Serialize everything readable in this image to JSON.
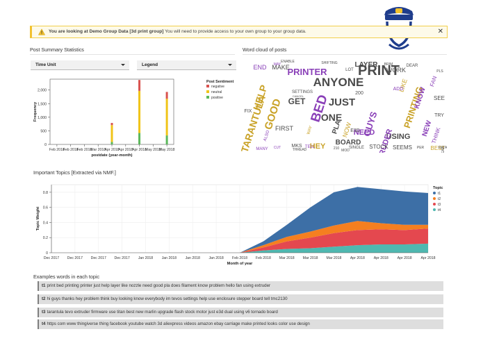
{
  "banner": {
    "bold_text": "You are looking at Demo Group Data [3d print group]",
    "text": " You will need to provide access to your own group to your group data.",
    "close_label": "✕"
  },
  "post_summary": {
    "title": "Post Summary Statistics",
    "time_unit_label": "Time Unit",
    "legend_label": "Legend"
  },
  "word_cloud": {
    "title": "Word cloud of posts",
    "words": [
      {
        "t": "ANYONE",
        "s": 17,
        "c": "#4b4b4b"
      },
      {
        "t": "PRINT",
        "s": 20,
        "c": "#4b4b4b"
      },
      {
        "t": "PRINTER",
        "s": 13,
        "c": "#8a40b8"
      },
      {
        "t": "TARANTULA",
        "s": 14,
        "c": "#c9a227"
      },
      {
        "t": "BED",
        "s": 19,
        "c": "#8a40b8"
      },
      {
        "t": "JUST",
        "s": 15,
        "c": "#4b4b4b"
      },
      {
        "t": "ONE",
        "s": 14,
        "c": "#4b4b4b"
      },
      {
        "t": "GOOD",
        "s": 15,
        "c": "#c9a227"
      },
      {
        "t": "HELP",
        "s": 14,
        "c": "#c9a227"
      },
      {
        "t": "PRINTING",
        "s": 13,
        "c": "#c9a227"
      },
      {
        "t": "GUYS",
        "s": 13,
        "c": "#8a40b8"
      },
      {
        "t": "NEED",
        "s": 11,
        "c": "#8a40b8"
      },
      {
        "t": "USING",
        "s": 11,
        "c": "#4b4b4b"
      },
      {
        "t": "BOARD",
        "s": 10,
        "c": "#4b4b4b"
      },
      {
        "t": "HEY",
        "s": 11,
        "c": "#c9a227"
      },
      {
        "t": "GET",
        "s": 12,
        "c": "#4b4b4b"
      },
      {
        "t": "LAYER",
        "s": 10,
        "c": "#4b4b4b"
      },
      {
        "t": "WORK",
        "s": 9,
        "c": "#4b4b4b"
      },
      {
        "t": "MAKE",
        "s": 9,
        "c": "#4b4b4b"
      },
      {
        "t": "END",
        "s": 9,
        "c": "#8a40b8"
      },
      {
        "t": "EXTRUDER",
        "s": 11,
        "c": "#8a40b8"
      },
      {
        "t": "NEW",
        "s": 10,
        "c": "#8a40b8"
      },
      {
        "t": "KNOW",
        "s": 10,
        "c": "#8a40b8"
      },
      {
        "t": "FIRST",
        "s": 9,
        "c": "#4b4b4b"
      },
      {
        "t": "PLA",
        "s": 10,
        "c": "#4b4b4b"
      },
      {
        "t": "NOW",
        "s": 9,
        "c": "#c9a227"
      },
      {
        "t": "STOCK",
        "s": 8,
        "c": "#4b4b4b"
      },
      {
        "t": "SEEMS",
        "s": 8,
        "c": "#4b4b4b"
      },
      {
        "t": "BEST",
        "s": 8,
        "c": "#c9a227"
      },
      {
        "t": "THINK",
        "s": 8,
        "c": "#8a40b8"
      },
      {
        "t": "LIKE",
        "s": 9,
        "c": "#c9a227"
      },
      {
        "t": "FAN",
        "s": 8,
        "c": "#8a40b8"
      },
      {
        "t": "SEE",
        "s": 8,
        "c": "#4b4b4b"
      },
      {
        "t": "TRY",
        "s": 7,
        "c": "#4b4b4b"
      },
      {
        "t": "MANY",
        "s": 6,
        "c": "#8a40b8"
      },
      {
        "t": "MKS",
        "s": 7,
        "c": "#4b4b4b"
      },
      {
        "t": "TELL",
        "s": 6,
        "c": "#8a40b8"
      },
      {
        "t": "SINGLE",
        "s": 6,
        "c": "#4b4b4b"
      },
      {
        "t": "E3D",
        "s": 7,
        "c": "#4b4b4b"
      },
      {
        "t": "200",
        "s": 7,
        "c": "#4b4b4b"
      },
      {
        "t": "ADD",
        "s": 7,
        "c": "#8a40b8"
      },
      {
        "t": "DEAR",
        "s": 6,
        "c": "#4b4b4b"
      },
      {
        "t": "FIX",
        "s": 7,
        "c": "#4b4b4b"
      },
      {
        "t": "SETTINGS",
        "s": 6,
        "c": "#4b4b4b"
      },
      {
        "t": "LOT",
        "s": 6,
        "c": "#4b4b4b"
      },
      {
        "t": "REAL",
        "s": 5,
        "c": "#4b4b4b"
      },
      {
        "t": "DATA",
        "s": 5,
        "c": "#4b4b4b"
      },
      {
        "t": "PER",
        "s": 5,
        "c": "#4b4b4b"
      },
      {
        "t": "ENABLE",
        "s": 5,
        "c": "#4b4b4b"
      },
      {
        "t": "SHIFTING",
        "s": 5,
        "c": "#4b4b4b"
      },
      {
        "t": "CUT",
        "s": 5,
        "c": "#8a40b8"
      },
      {
        "t": "THREAD",
        "s": 5,
        "c": "#4b4b4b"
      },
      {
        "t": "MOD",
        "s": 5,
        "c": "#4b4b4b"
      },
      {
        "t": "210",
        "s": 5,
        "c": "#4b4b4b"
      },
      {
        "t": "ALSO",
        "s": 6,
        "c": "#8a40b8"
      },
      {
        "t": "MAY",
        "s": 5,
        "c": "#8a40b8"
      },
      {
        "t": "CANCEL",
        "s": 4,
        "c": "#4b4b4b"
      },
      {
        "t": "BRIM",
        "s": 5,
        "c": "#4b4b4b"
      },
      {
        "t": "PLS",
        "s": 5,
        "c": "#4b4b4b"
      },
      {
        "t": "WAY",
        "s": 6,
        "c": "#c9a227"
      }
    ]
  },
  "bar_chart": {
    "chart_data": {
      "type": "bar",
      "stacked": true,
      "categories": [
        "Feb 2018",
        "Feb 2018",
        "Feb 2018",
        "Mar 2018",
        "Apr 2018",
        "Apr 2018",
        "Apr 2018",
        "May 2018",
        "May 2018"
      ],
      "series": [
        {
          "name": "negative",
          "color": "#d9534f",
          "values": [
            0,
            0,
            0,
            0,
            80,
            0,
            400,
            0,
            250
          ]
        },
        {
          "name": "neutral",
          "color": "#f0c419",
          "values": [
            0,
            0,
            0,
            0,
            620,
            0,
            1550,
            0,
            1350
          ]
        },
        {
          "name": "positive",
          "color": "#5cb85c",
          "values": [
            0,
            0,
            0,
            0,
            90,
            0,
            420,
            0,
            330
          ]
        }
      ],
      "xlabel": "postdate (year-month)",
      "ylabel": "Frequency",
      "yticks": [
        0,
        500,
        1000,
        1500,
        2000
      ],
      "ytick_labels": [
        "0",
        "500",
        "1,000",
        "1,500",
        "2,000"
      ],
      "ylim": [
        0,
        2400
      ],
      "legend_title": "Post Sentiment",
      "legend_position": "top-right"
    }
  },
  "topics_chart": {
    "title": "Important Topics [Extracted via NMF.]",
    "chart_data": {
      "type": "area",
      "stacked": true,
      "x": [
        "Dec 2017",
        "Dec 2017",
        "Dec 2017",
        "Dec 2017",
        "Jan 2018",
        "Jan 2018",
        "Jan 2018",
        "Jan 2018",
        "Feb 2018",
        "Feb 2018",
        "Mar 2018",
        "Mar 2018",
        "Mar 2018",
        "Apr 2018",
        "Apr 2018",
        "Apr 2018",
        "Apr 2018"
      ],
      "series": [
        {
          "name": "t4",
          "color": "#4fb8b0",
          "values": [
            0,
            0,
            0,
            0,
            0,
            0,
            0,
            0,
            0,
            0.03,
            0.05,
            0.06,
            0.08,
            0.1,
            0.11,
            0.11,
            0.12
          ]
        },
        {
          "name": "t3",
          "color": "#e4484f",
          "values": [
            0,
            0,
            0,
            0,
            0,
            0,
            0,
            0,
            0,
            0.04,
            0.1,
            0.14,
            0.18,
            0.2,
            0.2,
            0.19,
            0.2
          ]
        },
        {
          "name": "t2",
          "color": "#f57f20",
          "values": [
            0,
            0,
            0,
            0,
            0,
            0,
            0,
            0,
            0,
            0.03,
            0.06,
            0.08,
            0.1,
            0.12,
            0.08,
            0.07,
            0.05
          ]
        },
        {
          "name": "t1",
          "color": "#3d6fa6",
          "values": [
            0,
            0,
            0,
            0,
            0,
            0,
            0,
            0,
            0,
            0.05,
            0.16,
            0.32,
            0.44,
            0.45,
            0.45,
            0.44,
            0.42
          ]
        }
      ],
      "xlabel": "Month of year",
      "ylabel": "Topic Weight",
      "yticks": [
        0,
        0.2,
        0.4,
        0.6,
        0.8
      ],
      "ytick_labels": [
        "0",
        "0.2",
        "0.4",
        "0.6",
        "0.8"
      ],
      "ylim": [
        0,
        0.9
      ],
      "legend_title": "Topic",
      "legend_position": "top-right"
    }
  },
  "examples": {
    "title": "Examples words in each topic",
    "rows": [
      {
        "id": "t1",
        "text": "print bed printing printer just help layer like nozzle need good pla does filament know problem hello fan using extruder"
      },
      {
        "id": "t2",
        "text": "hi guys thanks hey problem think buy looking know everybody im tevos settings help use enclosure stepper board tell tmc2130"
      },
      {
        "id": "t3",
        "text": "tarantula tevo extruder firmware use titan best new marlin upgrade flash stock motor just e3d dual using v6 tornado board"
      },
      {
        "id": "t4",
        "text": "https com www thingiverse thing facebook youtube watch 3d aliexpress videos amazon ebay carriage make printed looks color use design"
      }
    ]
  }
}
